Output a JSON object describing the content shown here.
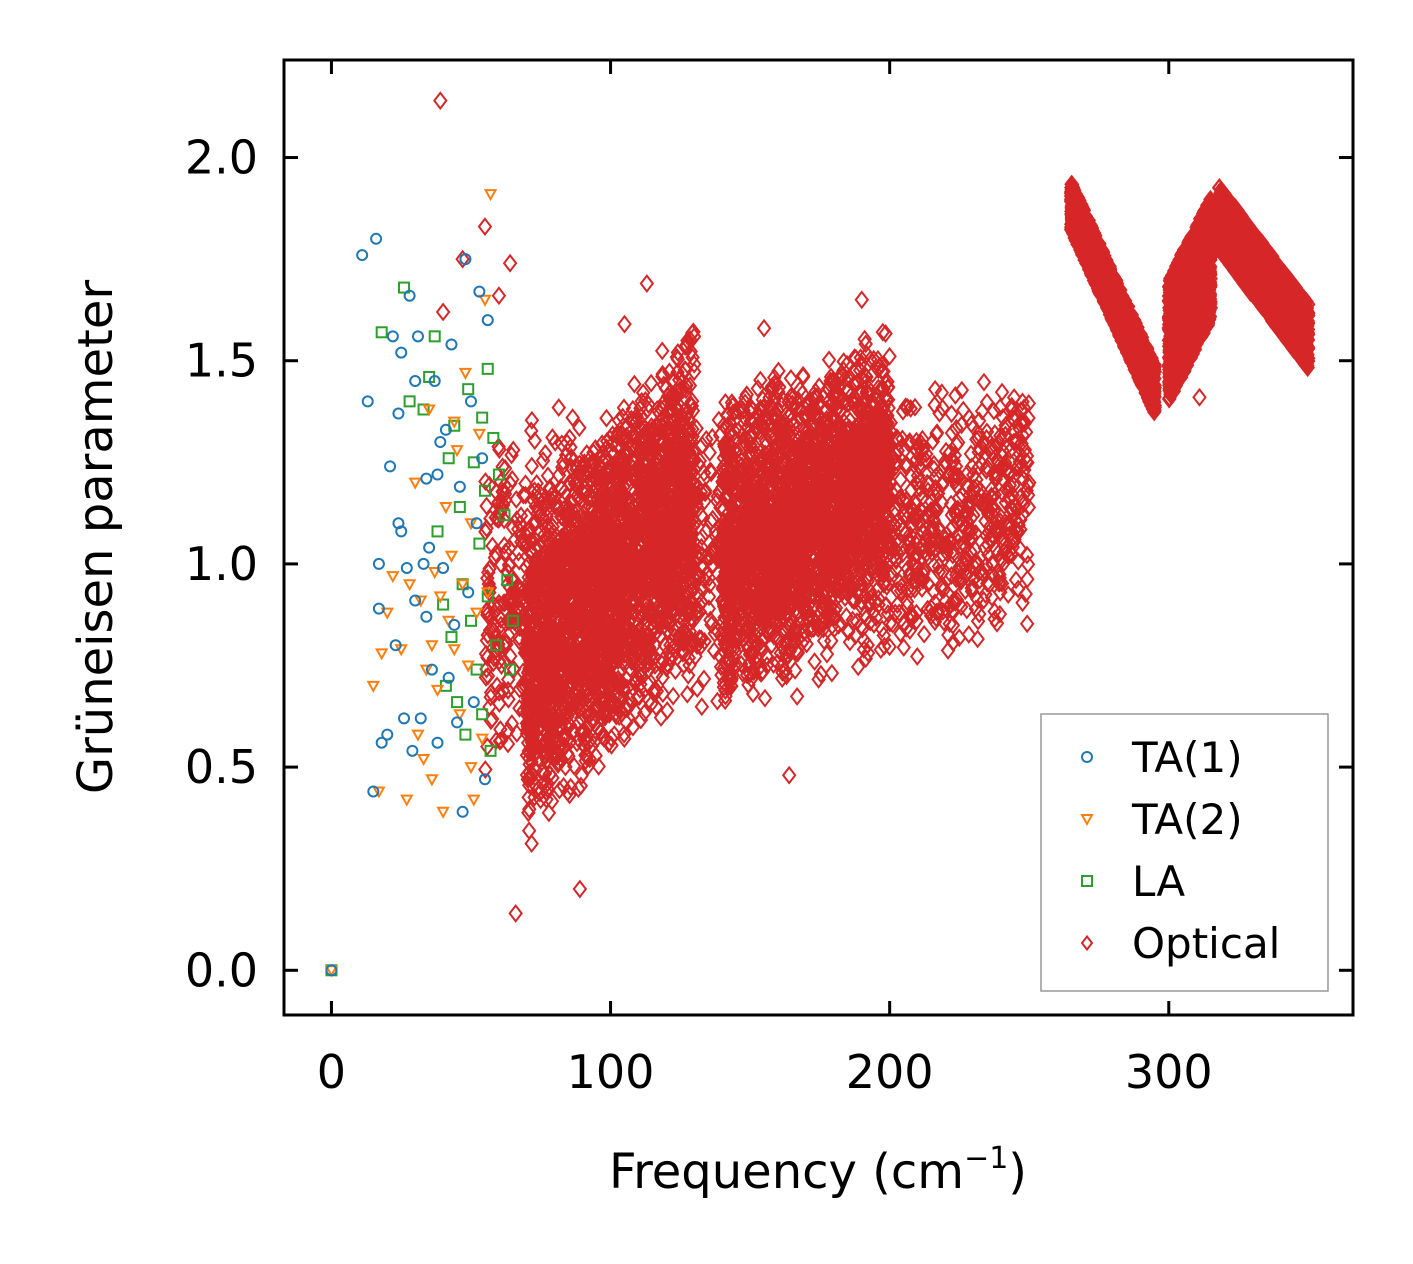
{
  "chart_data": {
    "type": "scatter",
    "title": "",
    "xlabel": "Frequency (cm",
    "xlabel_superscript": "−1",
    "xlabel_close": ")",
    "ylabel": "Grüneisen parameter",
    "xlim": [
      -17,
      366
    ],
    "ylim": [
      -0.11,
      2.24
    ],
    "xticks": [
      {
        "value": 0,
        "label": "0"
      },
      {
        "value": 100,
        "label": "100"
      },
      {
        "value": 200,
        "label": "200"
      },
      {
        "value": 300,
        "label": "300"
      }
    ],
    "yticks": [
      {
        "value": 0.0,
        "label": "0.0"
      },
      {
        "value": 0.5,
        "label": "0.5"
      },
      {
        "value": 1.0,
        "label": "1.0"
      },
      {
        "value": 1.5,
        "label": "1.5"
      },
      {
        "value": 2.0,
        "label": "2.0"
      }
    ],
    "grid": false,
    "legend_position": "lower-right",
    "series": [
      {
        "name": "TA(1)",
        "marker": "circle",
        "color": "#1f77b4",
        "points": [
          [
            0,
            0
          ],
          [
            11,
            1.76
          ],
          [
            15,
            0.44
          ],
          [
            16,
            1.8
          ],
          [
            17,
            0.89
          ],
          [
            17,
            1.0
          ],
          [
            18,
            0.56
          ],
          [
            21,
            1.24
          ],
          [
            22,
            1.56
          ],
          [
            23,
            0.8
          ],
          [
            24,
            1.1
          ],
          [
            24,
            1.37
          ],
          [
            25,
            1.08
          ],
          [
            25,
            1.52
          ],
          [
            26,
            0.62
          ],
          [
            27,
            0.99
          ],
          [
            28,
            1.66
          ],
          [
            29,
            0.54
          ],
          [
            30,
            0.91
          ],
          [
            31,
            1.56
          ],
          [
            32,
            0.62
          ],
          [
            33,
            1.0
          ],
          [
            34,
            1.21
          ],
          [
            34,
            0.87
          ],
          [
            35,
            1.04
          ],
          [
            36,
            0.74
          ],
          [
            37,
            1.45
          ],
          [
            38,
            0.56
          ],
          [
            39,
            1.3
          ],
          [
            40,
            0.99
          ],
          [
            41,
            1.33
          ],
          [
            42,
            0.72
          ],
          [
            43,
            1.54
          ],
          [
            44,
            0.85
          ],
          [
            45,
            0.61
          ],
          [
            46,
            1.19
          ],
          [
            47,
            0.39
          ],
          [
            48,
            1.75
          ],
          [
            49,
            0.93
          ],
          [
            50,
            1.4
          ],
          [
            51,
            0.66
          ],
          [
            52,
            1.1
          ],
          [
            53,
            1.67
          ],
          [
            54,
            1.26
          ],
          [
            55,
            0.47
          ],
          [
            56,
            1.6
          ],
          [
            13,
            1.4
          ],
          [
            20,
            0.58
          ],
          [
            30,
            1.45
          ],
          [
            38,
            1.22
          ]
        ]
      },
      {
        "name": "TA(2)",
        "marker": "triangle",
        "color": "#ff7f0e",
        "points": [
          [
            0,
            0
          ],
          [
            15,
            0.7
          ],
          [
            17,
            0.44
          ],
          [
            18,
            0.78
          ],
          [
            20,
            0.88
          ],
          [
            22,
            0.97
          ],
          [
            25,
            0.79
          ],
          [
            27,
            0.42
          ],
          [
            28,
            0.95
          ],
          [
            30,
            1.2
          ],
          [
            31,
            0.58
          ],
          [
            32,
            0.91
          ],
          [
            34,
            0.74
          ],
          [
            35,
            1.38
          ],
          [
            36,
            0.47
          ],
          [
            37,
            0.98
          ],
          [
            38,
            0.69
          ],
          [
            39,
            0.92
          ],
          [
            40,
            0.39
          ],
          [
            41,
            1.14
          ],
          [
            42,
            0.86
          ],
          [
            43,
            1.02
          ],
          [
            44,
            0.79
          ],
          [
            45,
            1.28
          ],
          [
            46,
            0.63
          ],
          [
            47,
            0.95
          ],
          [
            48,
            1.47
          ],
          [
            49,
            0.75
          ],
          [
            50,
            1.1
          ],
          [
            51,
            0.42
          ],
          [
            52,
            0.88
          ],
          [
            53,
            1.32
          ],
          [
            54,
            0.57
          ],
          [
            55,
            1.65
          ],
          [
            56,
            0.93
          ],
          [
            57,
            1.91
          ],
          [
            33,
            0.52
          ],
          [
            36,
            0.8
          ],
          [
            44,
            1.35
          ],
          [
            50,
            0.5
          ]
        ]
      },
      {
        "name": "LA",
        "marker": "square",
        "color": "#2ca02c",
        "points": [
          [
            0,
            0
          ],
          [
            26,
            1.68
          ],
          [
            18,
            1.57
          ],
          [
            28,
            1.4
          ],
          [
            33,
            1.38
          ],
          [
            35,
            1.46
          ],
          [
            37,
            1.56
          ],
          [
            38,
            1.08
          ],
          [
            40,
            0.9
          ],
          [
            41,
            0.7
          ],
          [
            42,
            1.26
          ],
          [
            43,
            0.82
          ],
          [
            44,
            1.34
          ],
          [
            45,
            0.66
          ],
          [
            46,
            1.14
          ],
          [
            47,
            0.95
          ],
          [
            48,
            0.58
          ],
          [
            49,
            1.43
          ],
          [
            50,
            0.86
          ],
          [
            51,
            1.25
          ],
          [
            52,
            0.74
          ],
          [
            53,
            1.05
          ],
          [
            54,
            0.63
          ],
          [
            55,
            1.18
          ],
          [
            56,
            0.92
          ],
          [
            57,
            0.54
          ],
          [
            58,
            1.31
          ],
          [
            59,
            0.8
          ],
          [
            60,
            1.22
          ],
          [
            62,
            1.12
          ],
          [
            63,
            0.96
          ],
          [
            64,
            0.74
          ],
          [
            65,
            0.86
          ],
          [
            56,
            1.48
          ],
          [
            54,
            1.36
          ]
        ]
      },
      {
        "name": "Optical",
        "marker": "diamond",
        "color": "#d62728",
        "outliers": [
          [
            39,
            2.14
          ],
          [
            55,
            1.83
          ],
          [
            64,
            1.74
          ],
          [
            47,
            1.75
          ],
          [
            66,
            0.14
          ],
          [
            89,
            0.2
          ],
          [
            164,
            0.48
          ],
          [
            113,
            1.69
          ],
          [
            190,
            1.65
          ],
          [
            225,
            1.11
          ],
          [
            294,
            1.42
          ],
          [
            311,
            1.41
          ],
          [
            40,
            1.62
          ],
          [
            60,
            1.66
          ],
          [
            105,
            1.59
          ],
          [
            155,
            1.58
          ],
          [
            250,
            1.2
          ],
          [
            245,
            1.14
          ]
        ],
        "clusters": [
          {
            "x": [
              55,
              250
            ],
            "y_low": [
              0.5,
              0.85
            ],
            "y_high": [
              1.35,
              1.45
            ]
          },
          {
            "x": [
              70,
              130
            ],
            "y_low": [
              0.3,
              0.8
            ],
            "y_high": [
              1.1,
              1.6
            ]
          },
          {
            "x": [
              140,
              200
            ],
            "y_low": [
              0.65,
              0.95
            ],
            "y_high": [
              1.4,
              1.55
            ]
          },
          {
            "x": [
              265,
              295
            ],
            "y_center": [
              1.88,
              1.43
            ],
            "spread": 0.06
          },
          {
            "x": [
              300,
              315
            ],
            "y_center": [
              1.55,
              1.75
            ],
            "spread": 0.15
          },
          {
            "x": [
              318,
              350
            ],
            "y_center": [
              1.85,
              1.56
            ],
            "spread": 0.08
          }
        ]
      }
    ]
  }
}
